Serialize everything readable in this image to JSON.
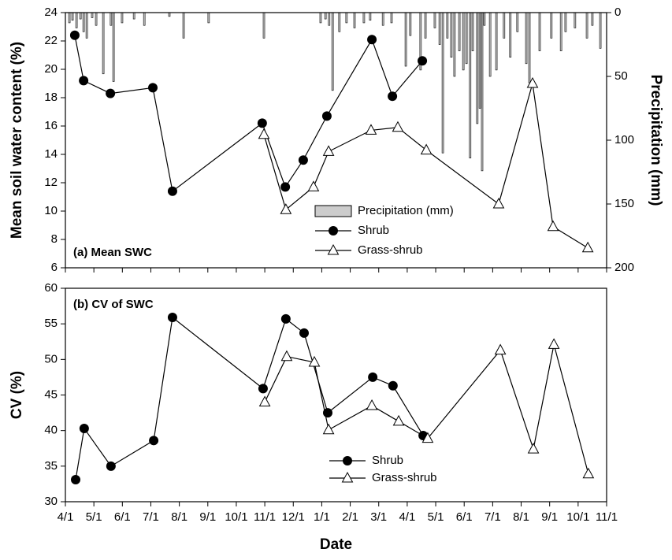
{
  "chart_data": [
    {
      "type": "line",
      "label": "(a) Mean SWC",
      "ylabel": "Mean soil water content (%)",
      "y2label": "Precipitation (mm)",
      "xlim": [
        0,
        19
      ],
      "xticks": [
        0,
        1,
        2,
        3,
        4,
        5,
        6,
        7,
        8,
        9,
        10,
        11,
        12,
        13,
        14,
        15,
        16,
        17,
        18,
        19
      ],
      "ylim": [
        6,
        24
      ],
      "yticks": [
        6,
        8,
        10,
        12,
        14,
        16,
        18,
        20,
        22,
        24
      ],
      "y2lim": [
        0,
        200
      ],
      "y2ticks": [
        0,
        50,
        100,
        150,
        200
      ],
      "y2_inverted": true,
      "legend": "lower center",
      "series": [
        {
          "name": "Precipitation (mm)",
          "type": "bar",
          "axis": "y2",
          "color": "#cccccc",
          "x": [
            0.14,
            0.25,
            0.39,
            0.53,
            0.64,
            0.75,
            0.94,
            1.08,
            1.33,
            1.6,
            1.69,
            1.99,
            2.41,
            2.77,
            3.65,
            4.15,
            5.03,
            6.97,
            8.96,
            9.13,
            9.26,
            9.38,
            9.62,
            9.87,
            10.15,
            10.48,
            10.7,
            11.15,
            11.45,
            11.95,
            12.11,
            12.47,
            12.64,
            12.97,
            13.14,
            13.25,
            13.41,
            13.55,
            13.66,
            13.83,
            13.97,
            14.08,
            14.21,
            14.3,
            14.46,
            14.55,
            14.63,
            14.71,
            14.91,
            15.13,
            15.4,
            15.62,
            15.87,
            16.18,
            16.29,
            16.65,
            17.06,
            17.4,
            17.56,
            17.89,
            18.31,
            18.5,
            18.78
          ],
          "values": [
            8,
            6,
            12,
            5,
            15,
            20,
            4,
            10,
            48,
            10,
            54,
            8,
            5,
            10,
            3,
            20,
            8,
            20,
            8,
            5,
            10,
            61,
            15,
            8,
            12,
            8,
            6,
            10,
            8,
            42,
            18,
            45,
            20,
            12,
            25,
            110,
            20,
            35,
            50,
            30,
            45,
            40,
            114,
            30,
            87,
            75,
            124,
            10,
            50,
            45,
            20,
            35,
            15,
            40,
            55,
            30,
            20,
            30,
            15,
            12,
            20,
            10,
            28
          ]
        },
        {
          "name": "Shrub",
          "type": "line",
          "marker": "circle",
          "color": "#000000",
          "x": [
            0.33,
            0.64,
            1.58,
            3.07,
            3.76,
            6.91,
            7.72,
            8.35,
            9.18,
            10.76,
            11.48,
            12.53
          ],
          "values": [
            22.4,
            19.2,
            18.3,
            18.7,
            11.4,
            16.2,
            11.7,
            13.6,
            16.7,
            22.1,
            18.1,
            20.6
          ]
        },
        {
          "name": "Grass-shrub",
          "type": "line",
          "marker": "triangle",
          "color": "#000000",
          "x": [
            6.97,
            7.74,
            8.71,
            9.24,
            10.73,
            11.67,
            12.67,
            15.21,
            16.4,
            17.12,
            18.34
          ],
          "values": [
            15.4,
            10.1,
            11.7,
            14.2,
            15.7,
            15.9,
            14.3,
            10.5,
            19.0,
            8.9,
            7.4
          ]
        }
      ]
    },
    {
      "type": "line",
      "label": "(b) CV of SWC",
      "ylabel": "CV (%)",
      "xlabel": "Date",
      "xlim": [
        0,
        19
      ],
      "xticks": [
        {
          "value": 0,
          "label": "4/1"
        },
        {
          "value": 1,
          "label": "5/1"
        },
        {
          "value": 2,
          "label": "6/1"
        },
        {
          "value": 3,
          "label": "7/1"
        },
        {
          "value": 4,
          "label": "8/1"
        },
        {
          "value": 5,
          "label": "9/1"
        },
        {
          "value": 6,
          "label": "10/1"
        },
        {
          "value": 7,
          "label": "11/1"
        },
        {
          "value": 8,
          "label": "12/1"
        },
        {
          "value": 9,
          "label": "1/1"
        },
        {
          "value": 10,
          "label": "2/1"
        },
        {
          "value": 11,
          "label": "3/1"
        },
        {
          "value": 12,
          "label": "4/1"
        },
        {
          "value": 13,
          "label": "5/1"
        },
        {
          "value": 14,
          "label": "6/1"
        },
        {
          "value": 15,
          "label": "7/1"
        },
        {
          "value": 16,
          "label": "8/1"
        },
        {
          "value": 17,
          "label": "9/1"
        },
        {
          "value": 18,
          "label": "10/1"
        },
        {
          "value": 19,
          "label": "11/1"
        }
      ],
      "ylim": [
        30,
        60
      ],
      "yticks": [
        30,
        35,
        40,
        45,
        50,
        55,
        60
      ],
      "legend": "lower center",
      "series": [
        {
          "name": "Shrub",
          "type": "line",
          "marker": "circle",
          "color": "#000000",
          "x": [
            0.36,
            0.66,
            1.6,
            3.1,
            3.76,
            6.94,
            7.74,
            8.38,
            9.21,
            10.79,
            11.5,
            12.56
          ],
          "values": [
            33.1,
            40.3,
            35.0,
            38.6,
            55.9,
            45.9,
            55.7,
            53.7,
            42.5,
            47.5,
            46.3,
            39.3
          ]
        },
        {
          "name": "Grass-shrub",
          "type": "line",
          "marker": "triangle",
          "color": "#000000",
          "x": [
            7.0,
            7.77,
            8.74,
            9.24,
            10.76,
            11.7,
            12.72,
            15.27,
            16.43,
            17.15,
            18.36
          ],
          "values": [
            44.0,
            50.4,
            49.6,
            40.1,
            43.5,
            41.3,
            38.9,
            51.3,
            37.4,
            52.1,
            33.9
          ]
        }
      ]
    }
  ]
}
